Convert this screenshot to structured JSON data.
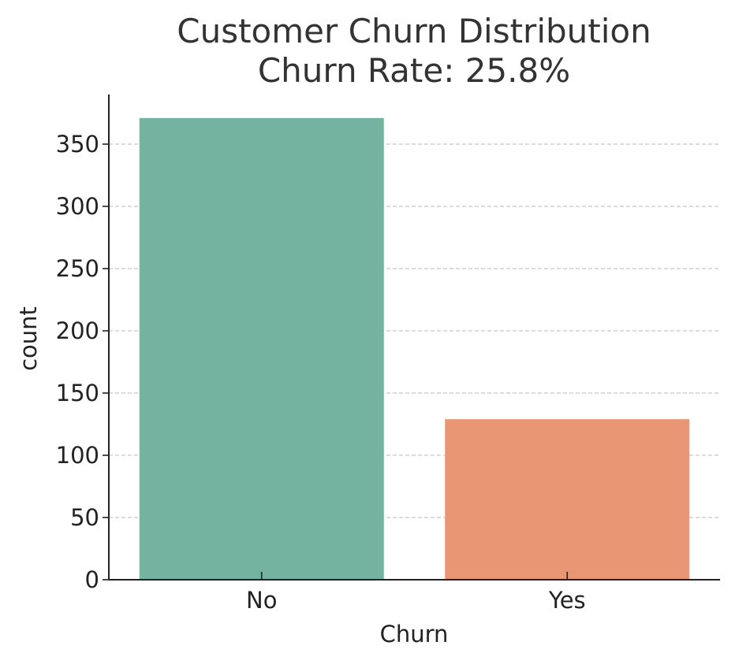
{
  "chart_data": {
    "type": "bar",
    "title": "Customer Churn Distribution",
    "subtitle": "Churn Rate: 25.8%",
    "xlabel": "Churn",
    "ylabel": "count",
    "categories": [
      "No",
      "Yes"
    ],
    "values": [
      371,
      129
    ],
    "colors": [
      "#73b3a0",
      "#e89673"
    ],
    "ylim": [
      0,
      390
    ],
    "yticks": [
      0,
      50,
      100,
      150,
      200,
      250,
      300,
      350
    ],
    "grid": "y-dashed",
    "legend": "none"
  }
}
